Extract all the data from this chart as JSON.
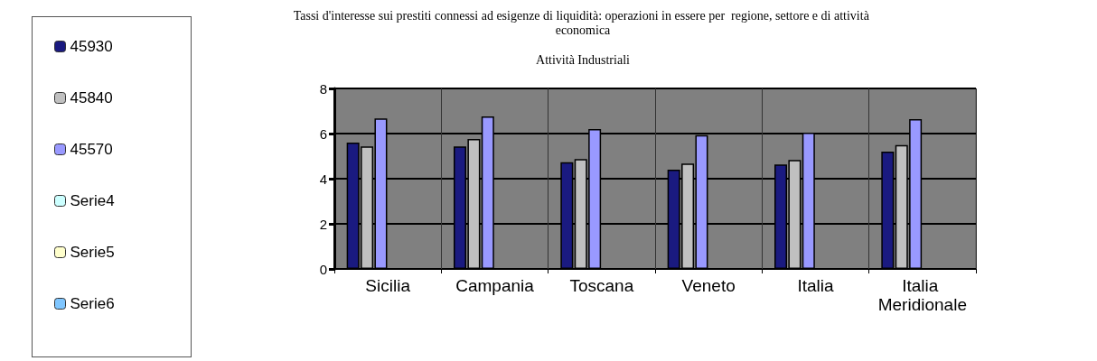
{
  "chart_data": {
    "type": "bar",
    "title": "Tassi d'interesse sui prestiti connessi ad esigenze di liquidità: operazioni in essere per  regione, settore e di attività economica",
    "subtitle": "Attività Industriali",
    "categories": [
      "Sicilia",
      "Campania",
      "Toscana",
      "Veneto",
      "Italia",
      "Italia Meridionale"
    ],
    "series": [
      {
        "name": "45930",
        "color": "#1a1a80",
        "values": [
          5.6,
          5.43,
          4.73,
          4.4,
          4.63,
          5.2
        ]
      },
      {
        "name": "45840",
        "color": "#c0c0c0",
        "values": [
          5.43,
          5.76,
          4.87,
          4.67,
          4.83,
          5.49
        ]
      },
      {
        "name": "45570",
        "color": "#9999ff",
        "values": [
          6.67,
          6.76,
          6.2,
          5.93,
          6.04,
          6.64
        ]
      },
      {
        "name": "Serie4",
        "color": "#ccffff",
        "values": [
          null,
          null,
          null,
          null,
          null,
          null
        ]
      },
      {
        "name": "Serie5",
        "color": "#ffffcc",
        "values": [
          null,
          null,
          null,
          null,
          null,
          null
        ]
      },
      {
        "name": "Serie6",
        "color": "#7fc6ff",
        "values": [
          null,
          null,
          null,
          null,
          null,
          null
        ]
      }
    ],
    "ylim": [
      0,
      8
    ],
    "yticks": [
      0,
      2,
      4,
      6,
      8
    ],
    "grid": true,
    "legend": "left"
  }
}
